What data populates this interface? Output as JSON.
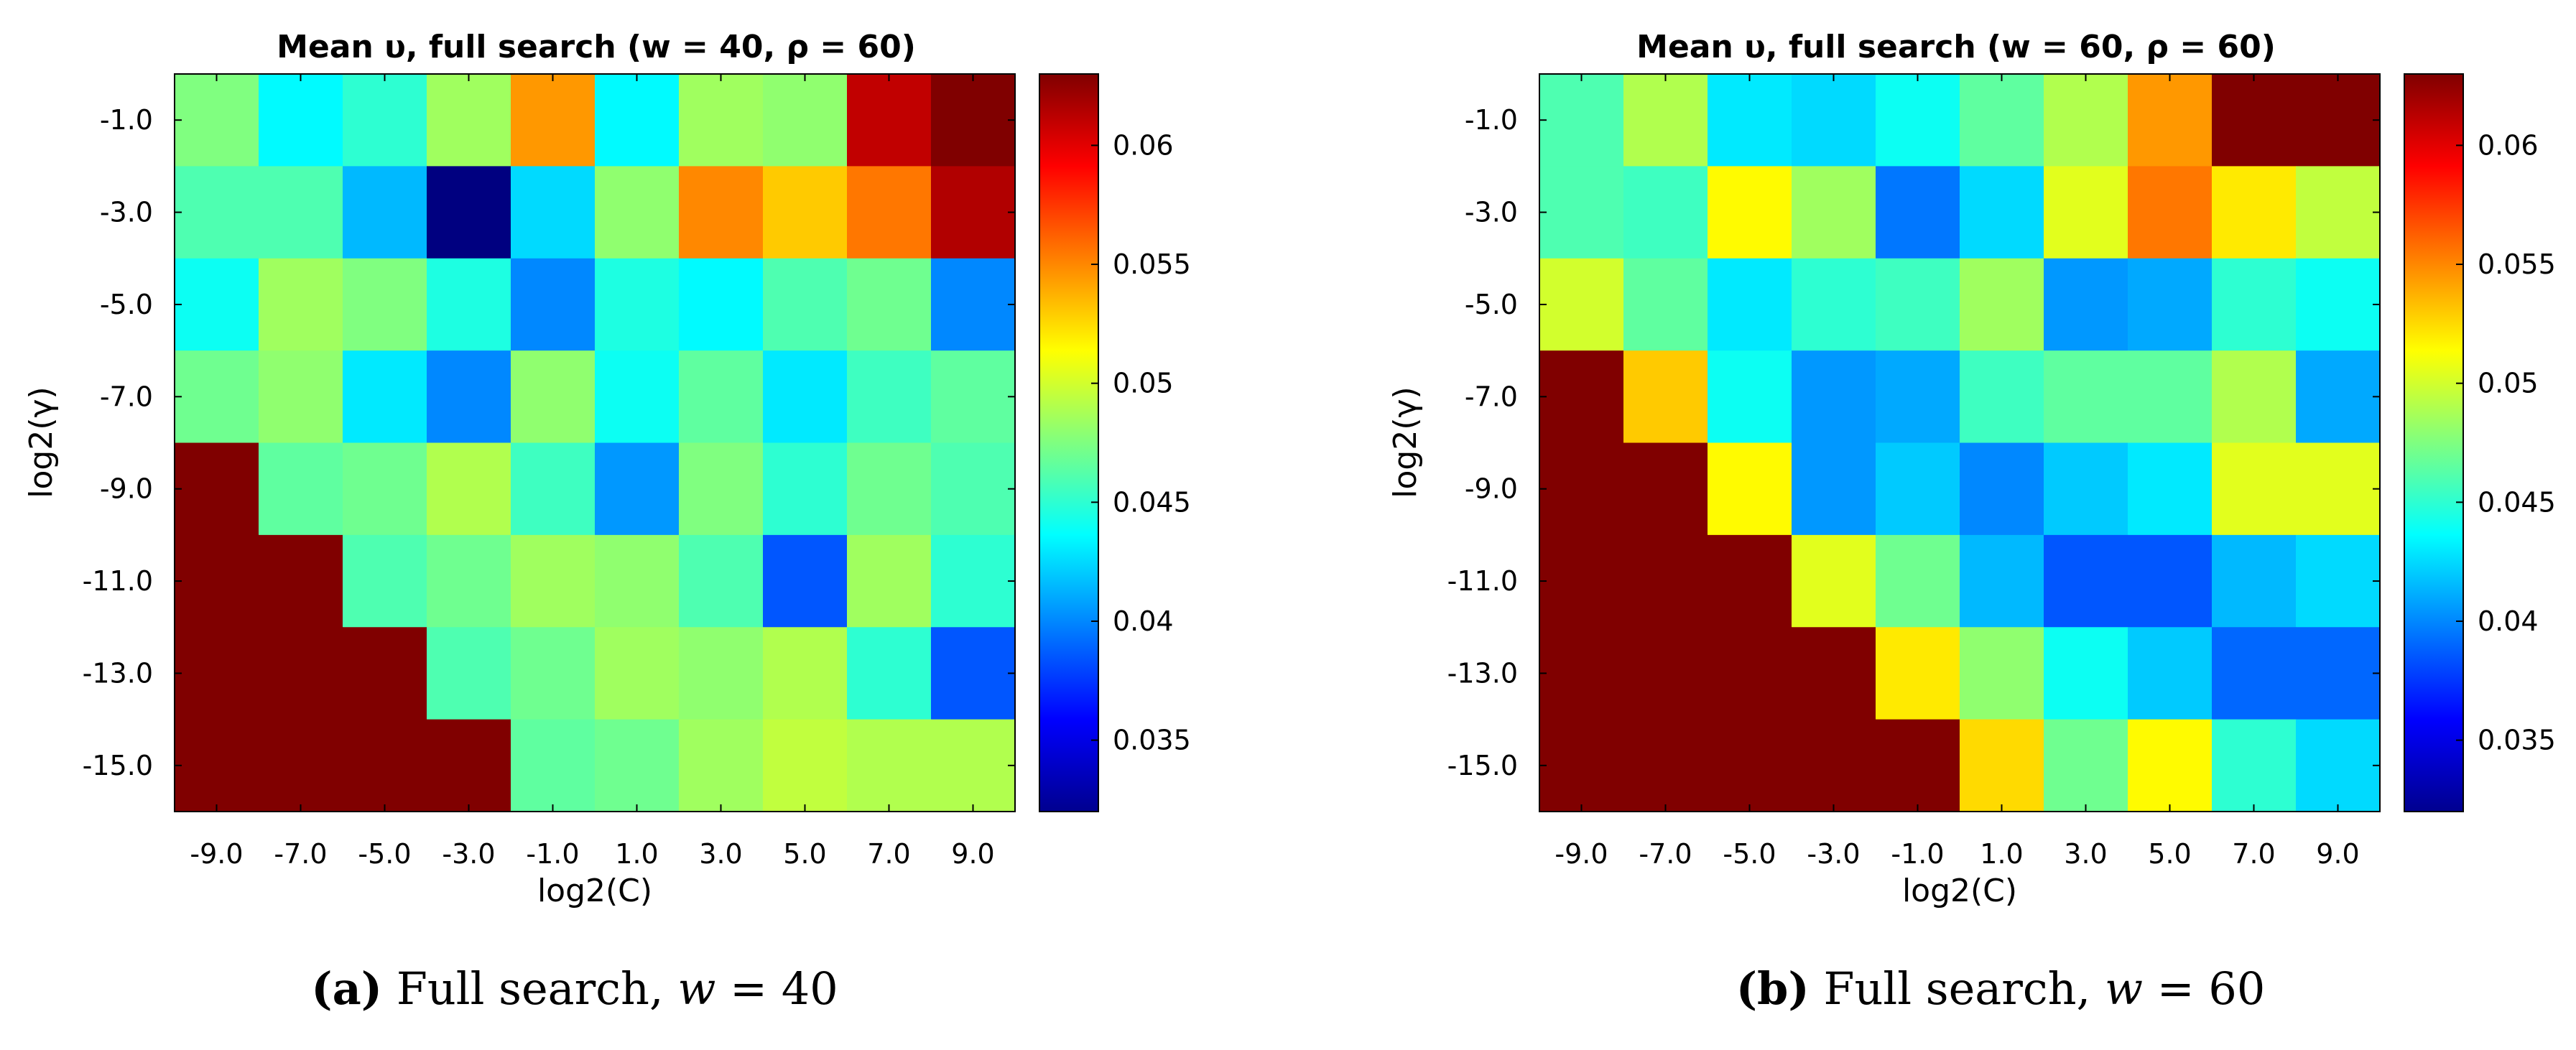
{
  "chart_data": [
    {
      "type": "heatmap",
      "title": "Mean υ, full search (w = 40, ρ = 60)",
      "xlabel": "log2(C)",
      "ylabel": "log2(γ)",
      "x": [
        "-9.0",
        "-7.0",
        "-5.0",
        "-3.0",
        "-1.0",
        "1.0",
        "3.0",
        "5.0",
        "7.0",
        "9.0"
      ],
      "y": [
        "-1.0",
        "-3.0",
        "-5.0",
        "-7.0",
        "-9.0",
        "-11.0",
        "-13.0",
        "-15.0"
      ],
      "z": [
        [
          0.0475,
          0.0435,
          0.045,
          0.0485,
          0.0545,
          0.0435,
          0.0485,
          0.048,
          0.061,
          0.063
        ],
        [
          0.046,
          0.046,
          0.0415,
          0.032,
          0.0425,
          0.048,
          0.055,
          0.053,
          0.0555,
          0.0615
        ],
        [
          0.044,
          0.0485,
          0.0475,
          0.0445,
          0.04,
          0.0445,
          0.0435,
          0.046,
          0.047,
          0.04
        ],
        [
          0.047,
          0.048,
          0.043,
          0.04,
          0.048,
          0.044,
          0.0465,
          0.043,
          0.0455,
          0.0465
        ],
        [
          0.063,
          0.0465,
          0.047,
          0.049,
          0.0455,
          0.0405,
          0.0475,
          0.045,
          0.047,
          0.046
        ],
        [
          0.063,
          0.063,
          0.046,
          0.047,
          0.0485,
          0.048,
          0.046,
          0.0385,
          0.0485,
          0.045
        ],
        [
          0.063,
          0.063,
          0.063,
          0.046,
          0.047,
          0.0485,
          0.048,
          0.049,
          0.045,
          0.0385
        ],
        [
          0.063,
          0.063,
          0.063,
          0.063,
          0.0465,
          0.047,
          0.0485,
          0.0495,
          0.049,
          0.049
        ]
      ],
      "colorbar": {
        "min": 0.032,
        "max": 0.063,
        "ticks": [
          "0.06",
          "0.055",
          "0.05",
          "0.045",
          "0.04",
          "0.035"
        ],
        "tick_values": [
          0.06,
          0.055,
          0.05,
          0.045,
          0.04,
          0.035
        ],
        "colormap": "jet"
      },
      "caption": {
        "label": "(a)",
        "text": " Full search, ",
        "math": "w",
        "math_rest": " = 40"
      }
    },
    {
      "type": "heatmap",
      "title": "Mean υ, full search (w = 60, ρ = 60)",
      "xlabel": "log2(C)",
      "ylabel": "log2(γ)",
      "x": [
        "-9.0",
        "-7.0",
        "-5.0",
        "-3.0",
        "-1.0",
        "1.0",
        "3.0",
        "5.0",
        "7.0",
        "9.0"
      ],
      "y": [
        "-1.0",
        "-3.0",
        "-5.0",
        "-7.0",
        "-9.0",
        "-11.0",
        "-13.0",
        "-15.0"
      ],
      "z": [
        [
          0.046,
          0.049,
          0.043,
          0.0425,
          0.044,
          0.0465,
          0.049,
          0.0545,
          0.063,
          0.063
        ],
        [
          0.046,
          0.0455,
          0.0515,
          0.0485,
          0.0395,
          0.0425,
          0.0505,
          0.0555,
          0.052,
          0.0495
        ],
        [
          0.05,
          0.0465,
          0.043,
          0.045,
          0.0455,
          0.0485,
          0.0405,
          0.041,
          0.045,
          0.044
        ],
        [
          0.063,
          0.053,
          0.044,
          0.0405,
          0.041,
          0.0455,
          0.0465,
          0.0465,
          0.049,
          0.041
        ],
        [
          0.063,
          0.063,
          0.0515,
          0.0405,
          0.042,
          0.04,
          0.042,
          0.043,
          0.0505,
          0.0505
        ],
        [
          0.063,
          0.063,
          0.063,
          0.0505,
          0.047,
          0.0415,
          0.0385,
          0.0385,
          0.0415,
          0.0425
        ],
        [
          0.063,
          0.063,
          0.063,
          0.063,
          0.052,
          0.048,
          0.044,
          0.042,
          0.039,
          0.039
        ],
        [
          0.063,
          0.063,
          0.063,
          0.063,
          0.063,
          0.0525,
          0.047,
          0.0515,
          0.045,
          0.0425
        ]
      ],
      "colorbar": {
        "min": 0.032,
        "max": 0.063,
        "ticks": [
          "0.06",
          "0.055",
          "0.05",
          "0.045",
          "0.04",
          "0.035"
        ],
        "tick_values": [
          0.06,
          0.055,
          0.05,
          0.045,
          0.04,
          0.035
        ],
        "colormap": "jet"
      },
      "caption": {
        "label": "(b)",
        "text": " Full search, ",
        "math": "w",
        "math_rest": " = 60"
      }
    }
  ]
}
